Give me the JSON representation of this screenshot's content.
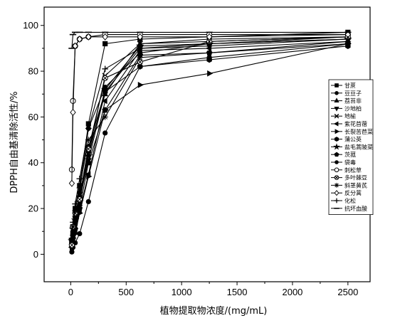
{
  "chart_data": {
    "type": "line",
    "xlabel": "植物提取物浓度/(mg/mL)",
    "ylabel": "DPPH自由基清除活性/%",
    "xlim": [
      -240,
      2700
    ],
    "ylim": [
      -12,
      108
    ],
    "xticks": [
      0,
      500,
      1000,
      1500,
      2000,
      2500
    ],
    "yticks": [
      0,
      20,
      40,
      60,
      80,
      100
    ],
    "legend_position": "right",
    "grid": false,
    "series": [
      {
        "name": "甘蔗",
        "marker": "square-filled",
        "x": [
          10,
          20,
          40,
          80,
          160,
          310,
          625,
          1250,
          2500
        ],
        "y": [
          5,
          12,
          20,
          30,
          57,
          92,
          94,
          95,
          97
        ]
      },
      {
        "name": "豆豆子",
        "marker": "circle-filled",
        "x": [
          10,
          20,
          40,
          80,
          160,
          310,
          625,
          1250,
          2500
        ],
        "y": [
          5,
          10,
          13,
          27,
          55,
          73,
          88,
          92,
          95
        ]
      },
      {
        "name": "荔苔非",
        "marker": "triangle-up-filled",
        "x": [
          10,
          20,
          40,
          80,
          160,
          310,
          625,
          1250,
          2500
        ],
        "y": [
          4,
          8,
          12,
          22,
          45,
          70,
          92,
          93,
          95
        ]
      },
      {
        "name": "沙地柏",
        "marker": "triangle-down-filled",
        "x": [
          10,
          20,
          40,
          80,
          160,
          310,
          625,
          1250,
          2500
        ],
        "y": [
          6,
          12,
          16,
          24,
          41,
          71,
          90,
          91,
          94
        ]
      },
      {
        "name": "地榆",
        "marker": "x",
        "x": [
          10,
          20,
          40,
          80,
          160,
          310,
          625,
          1250,
          2500
        ],
        "y": [
          5,
          11,
          17,
          26,
          44,
          78,
          92,
          94,
          95
        ]
      },
      {
        "name": "紫花苜蓿",
        "marker": "triangle-left-filled",
        "x": [
          10,
          20,
          40,
          80,
          160,
          310,
          625,
          1250,
          2500
        ],
        "y": [
          3,
          6,
          10,
          19,
          35,
          67,
          89,
          90,
          93
        ]
      },
      {
        "name": "长裂苦苣菜",
        "marker": "triangle-right-filled",
        "x": [
          10,
          20,
          40,
          80,
          160,
          310,
          625,
          1250,
          2500
        ],
        "y": [
          3,
          7,
          9,
          18,
          34,
          63,
          74,
          79,
          92
        ]
      },
      {
        "name": "蒲公英",
        "marker": "hexagon-filled",
        "x": [
          10,
          20,
          40,
          80,
          160,
          310,
          625,
          1250,
          2500
        ],
        "y": [
          5,
          9,
          14,
          25,
          47,
          71,
          82,
          85,
          91
        ]
      },
      {
        "name": "盐毛蒿陂菜",
        "marker": "star-filled",
        "x": [
          10,
          20,
          40,
          80,
          160,
          310,
          625,
          1250,
          2500
        ],
        "y": [
          6,
          11,
          15,
          23,
          43,
          72,
          91,
          92,
          94
        ]
      },
      {
        "name": "茨菰",
        "marker": "pentagon-filled",
        "x": [
          10,
          20,
          40,
          80,
          160,
          310,
          625,
          1250,
          2500
        ],
        "y": [
          4,
          8,
          11,
          20,
          40,
          63,
          87,
          88,
          92
        ]
      },
      {
        "name": "袋毒",
        "marker": "circle-filled",
        "x": [
          10,
          20,
          40,
          80,
          160,
          310,
          625,
          1250,
          2500
        ],
        "y": [
          1,
          3,
          5,
          9,
          23,
          53,
          82,
          86,
          92
        ]
      },
      {
        "name": "刺松草",
        "marker": "circle-open",
        "x": [
          10,
          20,
          40,
          80,
          160,
          310,
          625,
          1250,
          2500
        ],
        "y": [
          37,
          67,
          91,
          94,
          95,
          96,
          96,
          96,
          96
        ]
      },
      {
        "name": "多叶棘豆",
        "marker": "circle-crossed",
        "x": [
          10,
          20,
          40,
          80,
          160,
          310,
          625,
          1250,
          2500
        ],
        "y": [
          4,
          12,
          18,
          24,
          46,
          77,
          84,
          93,
          95
        ]
      },
      {
        "name": "斜茎黄芪",
        "marker": "asterisk",
        "x": [
          10,
          20,
          40,
          80,
          160,
          310,
          625,
          1250,
          2500
        ],
        "y": [
          6,
          12,
          19,
          29,
          50,
          60,
          86,
          88,
          93
        ]
      },
      {
        "name": "反分蒿",
        "marker": "diamond-open",
        "x": [
          10,
          20,
          40,
          80,
          160,
          310,
          625,
          1250,
          2500
        ],
        "y": [
          31,
          62,
          91,
          94,
          95,
          95,
          95,
          95,
          96
        ]
      },
      {
        "name": "化松",
        "marker": "plus",
        "x": [
          10,
          20,
          40,
          80,
          160,
          310,
          625,
          1250,
          2500
        ],
        "y": [
          7,
          14,
          22,
          33,
          55,
          81,
          90,
          92,
          94
        ]
      },
      {
        "name": "抗坏血酸",
        "marker": "dash",
        "x": [
          10,
          20,
          40,
          80,
          160,
          310,
          625,
          1250,
          2500
        ],
        "y": [
          90,
          96,
          97,
          97,
          97,
          97,
          97,
          97,
          97
        ]
      }
    ]
  }
}
